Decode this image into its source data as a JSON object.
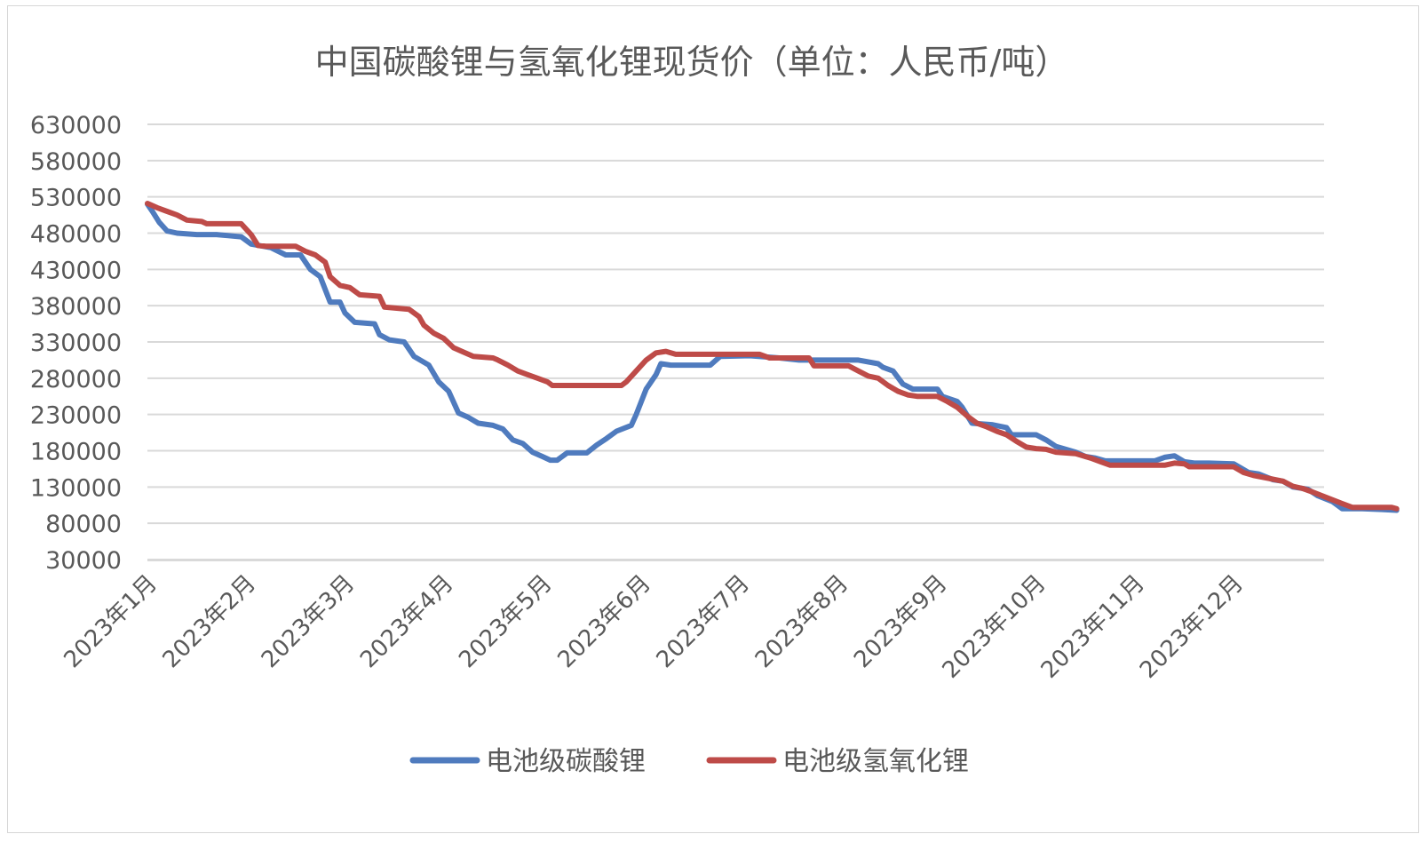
{
  "chart_data": {
    "type": "line",
    "title": "中国碳酸锂与氢氧化锂现货价（单位：人民币/吨）",
    "xlabel": "",
    "ylabel": "",
    "ylim": [
      30000,
      630000
    ],
    "yticks": [
      30000,
      80000,
      130000,
      180000,
      230000,
      280000,
      330000,
      380000,
      430000,
      480000,
      530000,
      580000,
      630000
    ],
    "yticks_labels": [
      "30000",
      "80000",
      "130000",
      "180000",
      "230000",
      "280000",
      "330000",
      "380000",
      "430000",
      "480000",
      "530000",
      "580000",
      "630000"
    ],
    "categories": [
      "2023年1月",
      "2023年2月",
      "2023年3月",
      "2023年4月",
      "2023年5月",
      "2023年6月",
      "2023年7月",
      "2023年8月",
      "2023年9月",
      "2023年10月",
      "2023年11月",
      "2023年12月"
    ],
    "grid": true,
    "legend_position": "bottom",
    "series": [
      {
        "name": "电池级碳酸锂",
        "color": "#4F7BBE",
        "points": [
          [
            0.0,
            520000
          ],
          [
            0.05,
            510000
          ],
          [
            0.12,
            495000
          ],
          [
            0.2,
            483000
          ],
          [
            0.3,
            480000
          ],
          [
            0.5,
            478000
          ],
          [
            0.7,
            478000
          ],
          [
            0.95,
            475000
          ],
          [
            1.05,
            465000
          ],
          [
            1.25,
            460000
          ],
          [
            1.4,
            450000
          ],
          [
            1.55,
            450000
          ],
          [
            1.65,
            430000
          ],
          [
            1.75,
            420000
          ],
          [
            1.85,
            385000
          ],
          [
            1.95,
            385000
          ],
          [
            2.0,
            370000
          ],
          [
            2.1,
            357000
          ],
          [
            2.3,
            355000
          ],
          [
            2.35,
            340000
          ],
          [
            2.45,
            333000
          ],
          [
            2.6,
            330000
          ],
          [
            2.7,
            310000
          ],
          [
            2.85,
            298000
          ],
          [
            2.95,
            275000
          ],
          [
            3.05,
            262000
          ],
          [
            3.15,
            232000
          ],
          [
            3.25,
            226000
          ],
          [
            3.35,
            218000
          ],
          [
            3.5,
            215000
          ],
          [
            3.6,
            210000
          ],
          [
            3.7,
            195000
          ],
          [
            3.8,
            190000
          ],
          [
            3.9,
            178000
          ],
          [
            4.0,
            172000
          ],
          [
            4.08,
            167000
          ],
          [
            4.15,
            167000
          ],
          [
            4.25,
            177000
          ],
          [
            4.45,
            177000
          ],
          [
            4.55,
            188000
          ],
          [
            4.65,
            197000
          ],
          [
            4.75,
            207000
          ],
          [
            4.9,
            215000
          ],
          [
            4.95,
            230000
          ],
          [
            5.05,
            265000
          ],
          [
            5.15,
            285000
          ],
          [
            5.2,
            300000
          ],
          [
            5.3,
            298000
          ],
          [
            5.45,
            298000
          ],
          [
            5.7,
            298000
          ],
          [
            5.8,
            310000
          ],
          [
            6.1,
            311000
          ],
          [
            6.4,
            308000
          ],
          [
            6.6,
            305000
          ],
          [
            6.9,
            305000
          ],
          [
            7.0,
            305000
          ],
          [
            7.2,
            305000
          ],
          [
            7.4,
            300000
          ],
          [
            7.45,
            295000
          ],
          [
            7.55,
            290000
          ],
          [
            7.65,
            272000
          ],
          [
            7.75,
            265000
          ],
          [
            8.0,
            265000
          ],
          [
            8.05,
            255000
          ],
          [
            8.2,
            248000
          ],
          [
            8.25,
            240000
          ],
          [
            8.35,
            218000
          ],
          [
            8.55,
            216000
          ],
          [
            8.7,
            212000
          ],
          [
            8.75,
            202000
          ],
          [
            9.0,
            202000
          ],
          [
            9.1,
            195000
          ],
          [
            9.2,
            186000
          ],
          [
            9.3,
            182000
          ],
          [
            9.4,
            178000
          ],
          [
            9.5,
            172000
          ],
          [
            9.6,
            170000
          ],
          [
            9.7,
            166000
          ],
          [
            10.0,
            166000
          ],
          [
            10.2,
            166000
          ],
          [
            10.3,
            171000
          ],
          [
            10.4,
            173000
          ],
          [
            10.5,
            165000
          ],
          [
            10.6,
            163000
          ],
          [
            10.75,
            163000
          ],
          [
            11.0,
            162000
          ],
          [
            11.15,
            150000
          ],
          [
            11.25,
            148000
          ],
          [
            11.4,
            140000
          ],
          [
            11.5,
            138000
          ],
          [
            11.6,
            130000
          ],
          [
            11.75,
            127000
          ],
          [
            11.85,
            118000
          ],
          [
            12.0,
            110000
          ],
          [
            12.1,
            100000
          ],
          [
            12.3,
            100000
          ],
          [
            12.5,
            99000
          ],
          [
            12.65,
            98000
          ]
        ]
      },
      {
        "name": "电池级氢氧化锂",
        "color": "#BE4B48",
        "points": [
          [
            0.0,
            521000
          ],
          [
            0.1,
            515000
          ],
          [
            0.2,
            510000
          ],
          [
            0.3,
            505000
          ],
          [
            0.4,
            498000
          ],
          [
            0.55,
            496000
          ],
          [
            0.6,
            493000
          ],
          [
            0.95,
            493000
          ],
          [
            1.05,
            478000
          ],
          [
            1.12,
            463000
          ],
          [
            1.2,
            462000
          ],
          [
            1.5,
            462000
          ],
          [
            1.6,
            455000
          ],
          [
            1.7,
            450000
          ],
          [
            1.8,
            440000
          ],
          [
            1.85,
            420000
          ],
          [
            1.95,
            408000
          ],
          [
            2.05,
            405000
          ],
          [
            2.15,
            395000
          ],
          [
            2.35,
            393000
          ],
          [
            2.4,
            378000
          ],
          [
            2.65,
            375000
          ],
          [
            2.75,
            365000
          ],
          [
            2.8,
            353000
          ],
          [
            2.9,
            342000
          ],
          [
            3.0,
            335000
          ],
          [
            3.1,
            322000
          ],
          [
            3.2,
            316000
          ],
          [
            3.3,
            310000
          ],
          [
            3.5,
            308000
          ],
          [
            3.55,
            305000
          ],
          [
            3.65,
            298000
          ],
          [
            3.75,
            290000
          ],
          [
            3.85,
            285000
          ],
          [
            3.95,
            280000
          ],
          [
            4.05,
            275000
          ],
          [
            4.1,
            270000
          ],
          [
            4.5,
            270000
          ],
          [
            4.8,
            270000
          ],
          [
            4.85,
            275000
          ],
          [
            4.95,
            290000
          ],
          [
            5.05,
            305000
          ],
          [
            5.15,
            315000
          ],
          [
            5.25,
            317000
          ],
          [
            5.35,
            313000
          ],
          [
            5.6,
            313000
          ],
          [
            5.9,
            313000
          ],
          [
            6.2,
            313000
          ],
          [
            6.3,
            308000
          ],
          [
            6.7,
            308000
          ],
          [
            6.75,
            297000
          ],
          [
            7.0,
            297000
          ],
          [
            7.1,
            297000
          ],
          [
            7.2,
            290000
          ],
          [
            7.3,
            283000
          ],
          [
            7.4,
            280000
          ],
          [
            7.5,
            270000
          ],
          [
            7.6,
            262000
          ],
          [
            7.7,
            257000
          ],
          [
            7.8,
            255000
          ],
          [
            8.0,
            255000
          ],
          [
            8.1,
            248000
          ],
          [
            8.2,
            240000
          ],
          [
            8.3,
            228000
          ],
          [
            8.4,
            218000
          ],
          [
            8.5,
            213000
          ],
          [
            8.6,
            207000
          ],
          [
            8.7,
            202000
          ],
          [
            8.8,
            193000
          ],
          [
            8.9,
            185000
          ],
          [
            9.0,
            183000
          ],
          [
            9.1,
            182000
          ],
          [
            9.2,
            178000
          ],
          [
            9.4,
            176000
          ],
          [
            9.55,
            170000
          ],
          [
            9.65,
            165000
          ],
          [
            9.75,
            160000
          ],
          [
            10.0,
            160000
          ],
          [
            10.3,
            160000
          ],
          [
            10.4,
            163000
          ],
          [
            10.5,
            162000
          ],
          [
            10.55,
            158000
          ],
          [
            10.7,
            158000
          ],
          [
            11.0,
            158000
          ],
          [
            11.1,
            150000
          ],
          [
            11.2,
            146000
          ],
          [
            11.35,
            142000
          ],
          [
            11.5,
            138000
          ],
          [
            11.6,
            131000
          ],
          [
            11.7,
            128000
          ],
          [
            11.8,
            123000
          ],
          [
            11.95,
            115000
          ],
          [
            12.1,
            107000
          ],
          [
            12.2,
            102000
          ],
          [
            12.4,
            102000
          ],
          [
            12.6,
            102000
          ],
          [
            12.65,
            100000
          ]
        ]
      }
    ]
  }
}
